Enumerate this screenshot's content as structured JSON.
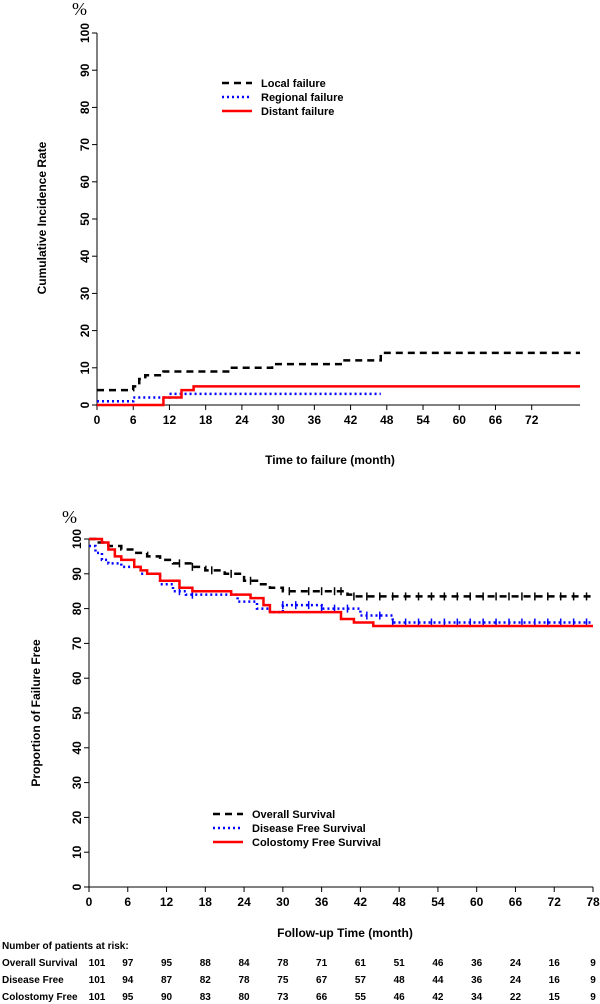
{
  "chart_data": [
    {
      "type": "line",
      "title": "",
      "unit_symbol": "%",
      "xlabel": "Time to failure (month)",
      "ylabel": "Cumulative Incidence Rate",
      "xlim": [
        0,
        80
      ],
      "ylim": [
        0,
        100
      ],
      "xticks": [
        "0",
        "6",
        "12",
        "18",
        "24",
        "30",
        "36",
        "42",
        "48",
        "54",
        "60",
        "66",
        "72"
      ],
      "yticks": [
        "0",
        "10",
        "20",
        "30",
        "40",
        "50",
        "60",
        "70",
        "80",
        "90",
        "100"
      ],
      "legend_position": "top-center",
      "series": [
        {
          "name": "Local failure",
          "color": "#000000",
          "style": "dashed",
          "steps": [
            [
              0,
              4
            ],
            [
              5,
              4
            ],
            [
              6,
              5
            ],
            [
              7,
              7
            ],
            [
              8,
              8
            ],
            [
              11,
              9
            ],
            [
              15,
              9
            ],
            [
              22,
              10
            ],
            [
              29,
              11
            ],
            [
              41,
              12
            ],
            [
              47,
              14
            ],
            [
              80,
              14
            ]
          ]
        },
        {
          "name": "Regional failure",
          "color": "#0000ff",
          "style": "dotted",
          "steps": [
            [
              0,
              1
            ],
            [
              5,
              1
            ],
            [
              6,
              2
            ],
            [
              12,
              3
            ],
            [
              47,
              3
            ]
          ]
        },
        {
          "name": "Distant failure",
          "color": "#ff0000",
          "style": "solid",
          "steps": [
            [
              0,
              0
            ],
            [
              11,
              0
            ],
            [
              11,
              2
            ],
            [
              14,
              2
            ],
            [
              14,
              4
            ],
            [
              16,
              4
            ],
            [
              16,
              5
            ],
            [
              80,
              5
            ]
          ]
        }
      ]
    },
    {
      "type": "line",
      "title": "",
      "unit_symbol": "%",
      "xlabel": "Follow-up Time (month)",
      "ylabel": "Proportion of Failure Free",
      "xlim": [
        0,
        78
      ],
      "ylim": [
        0,
        100
      ],
      "xticks": [
        "0",
        "6",
        "12",
        "18",
        "24",
        "30",
        "36",
        "42",
        "48",
        "54",
        "60",
        "66",
        "72",
        "78"
      ],
      "yticks": [
        "0",
        "10",
        "20",
        "30",
        "40",
        "50",
        "60",
        "70",
        "80",
        "90",
        "100"
      ],
      "legend_position": "bottom-center",
      "series": [
        {
          "name": "Overall Survival",
          "color": "#000000",
          "style": "dashed",
          "steps": [
            [
              0,
              100
            ],
            [
              1,
              99
            ],
            [
              3,
              98
            ],
            [
              5,
              97
            ],
            [
              7,
              96
            ],
            [
              9,
              95
            ],
            [
              11,
              94
            ],
            [
              13,
              93
            ],
            [
              16,
              92
            ],
            [
              18,
              91
            ],
            [
              21,
              90
            ],
            [
              24,
              88
            ],
            [
              26,
              87
            ],
            [
              28,
              86
            ],
            [
              30,
              85
            ],
            [
              40,
              84
            ],
            [
              41,
              83.5
            ],
            [
              78,
              83.5
            ]
          ],
          "censor_x": [
            14,
            16,
            19,
            22,
            25,
            31,
            34,
            36,
            38,
            39,
            41,
            43,
            45,
            47,
            49,
            51,
            53,
            55,
            57,
            59,
            61,
            63,
            65,
            67,
            69,
            71,
            73,
            75,
            77
          ]
        },
        {
          "name": "Disease Free Survival",
          "color": "#0000ff",
          "style": "dotted",
          "steps": [
            [
              0,
              98
            ],
            [
              1,
              96
            ],
            [
              2,
              94
            ],
            [
              3,
              93
            ],
            [
              5,
              92
            ],
            [
              8,
              90
            ],
            [
              11,
              87
            ],
            [
              13,
              85
            ],
            [
              15,
              84
            ],
            [
              21,
              84
            ],
            [
              23,
              82
            ],
            [
              26,
              80
            ],
            [
              28,
              79
            ],
            [
              30,
              81
            ],
            [
              36,
              80
            ],
            [
              40,
              80
            ],
            [
              42,
              78
            ],
            [
              47,
              76
            ],
            [
              78,
              76
            ]
          ],
          "censor_x": [
            14,
            16,
            30,
            32,
            34,
            36,
            38,
            40,
            43,
            45,
            47,
            49,
            51,
            53,
            55,
            57,
            59,
            61,
            63,
            65,
            67,
            69,
            71,
            73,
            75,
            77
          ]
        },
        {
          "name": "Colostomy Free Survival",
          "color": "#ff0000",
          "style": "solid",
          "steps": [
            [
              0,
              100
            ],
            [
              2,
              99
            ],
            [
              3,
              97
            ],
            [
              4,
              95
            ],
            [
              5,
              94
            ],
            [
              7,
              92
            ],
            [
              8,
              91
            ],
            [
              9,
              90
            ],
            [
              11,
              88
            ],
            [
              14,
              86
            ],
            [
              16,
              85
            ],
            [
              22,
              84
            ],
            [
              25,
              83
            ],
            [
              27,
              81
            ],
            [
              28,
              79
            ],
            [
              37,
              79
            ],
            [
              39,
              77
            ],
            [
              41,
              76
            ],
            [
              44,
              75
            ],
            [
              78,
              75
            ]
          ],
          "censor_x": []
        }
      ]
    }
  ],
  "risk_table": {
    "title": "Number of patients at risk:",
    "rows": [
      {
        "label": "Overall Survival",
        "values": [
          "101",
          "97",
          "95",
          "88",
          "84",
          "78",
          "71",
          "61",
          "51",
          "46",
          "36",
          "24",
          "16",
          "9"
        ]
      },
      {
        "label": "Disease Free",
        "values": [
          "101",
          "94",
          "87",
          "82",
          "78",
          "75",
          "67",
          "57",
          "48",
          "44",
          "36",
          "24",
          "16",
          "9"
        ]
      },
      {
        "label": "Colostomy Free",
        "values": [
          "101",
          "95",
          "90",
          "83",
          "80",
          "73",
          "66",
          "55",
          "46",
          "42",
          "34",
          "22",
          "15",
          "9"
        ]
      }
    ]
  }
}
